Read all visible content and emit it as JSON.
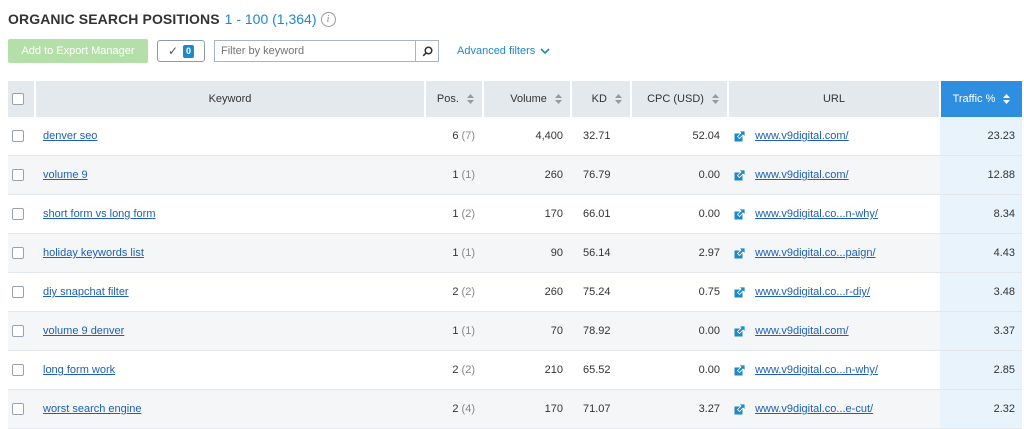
{
  "header": {
    "title": "ORGANIC SEARCH POSITIONS",
    "range": "1 - 100 (1,364)",
    "info_glyph": "i"
  },
  "toolbar": {
    "export_label": "Add to Export Manager",
    "selected_count": "0",
    "filter_placeholder": "Filter by keyword",
    "filter_value": "",
    "advanced_filters_label": "Advanced filters"
  },
  "table": {
    "columns": {
      "keyword": "Keyword",
      "pos": "Pos.",
      "volume": "Volume",
      "kd": "KD",
      "cpc": "CPC (USD)",
      "url": "URL",
      "traffic": "Traffic %"
    },
    "rows": [
      {
        "keyword": "denver seo",
        "pos": "6",
        "prev": "(7)",
        "volume": "4,400",
        "kd": "32.71",
        "cpc": "52.04",
        "url": "www.v9digital.com/",
        "traffic": "23.23"
      },
      {
        "keyword": "volume 9",
        "pos": "1",
        "prev": "(1)",
        "volume": "260",
        "kd": "76.79",
        "cpc": "0.00",
        "url": "www.v9digital.com/",
        "traffic": "12.88"
      },
      {
        "keyword": "short form vs long form",
        "pos": "1",
        "prev": "(2)",
        "volume": "170",
        "kd": "66.01",
        "cpc": "0.00",
        "url": "www.v9digital.co...n-why/",
        "traffic": "8.34"
      },
      {
        "keyword": "holiday keywords list",
        "pos": "1",
        "prev": "(1)",
        "volume": "90",
        "kd": "56.14",
        "cpc": "2.97",
        "url": "www.v9digital.co...paign/",
        "traffic": "4.43"
      },
      {
        "keyword": "diy snapchat filter",
        "pos": "2",
        "prev": "(2)",
        "volume": "260",
        "kd": "75.24",
        "cpc": "0.75",
        "url": "www.v9digital.co...r-diy/",
        "traffic": "3.48"
      },
      {
        "keyword": "volume 9 denver",
        "pos": "1",
        "prev": "(1)",
        "volume": "70",
        "kd": "78.92",
        "cpc": "0.00",
        "url": "www.v9digital.com/",
        "traffic": "3.37"
      },
      {
        "keyword": "long form work",
        "pos": "2",
        "prev": "(2)",
        "volume": "210",
        "kd": "65.52",
        "cpc": "0.00",
        "url": "www.v9digital.co...n-why/",
        "traffic": "2.85"
      },
      {
        "keyword": "worst search engine",
        "pos": "2",
        "prev": "(4)",
        "volume": "170",
        "kd": "71.07",
        "cpc": "3.27",
        "url": "www.v9digital.co...e-cut/",
        "traffic": "2.32"
      }
    ]
  },
  "colors": {
    "accent": "#1e88c8",
    "traffic_header": "#2e8fe0",
    "export_button": "#b5dfa8",
    "link": "#1f5fb4"
  },
  "icons": {
    "info": "info-icon",
    "check": "checkmark-icon",
    "search": "search-icon",
    "chevron": "chevron-down-icon",
    "sort": "sort-icon",
    "external_link": "external-link-icon",
    "checkbox": "checkbox-icon"
  }
}
